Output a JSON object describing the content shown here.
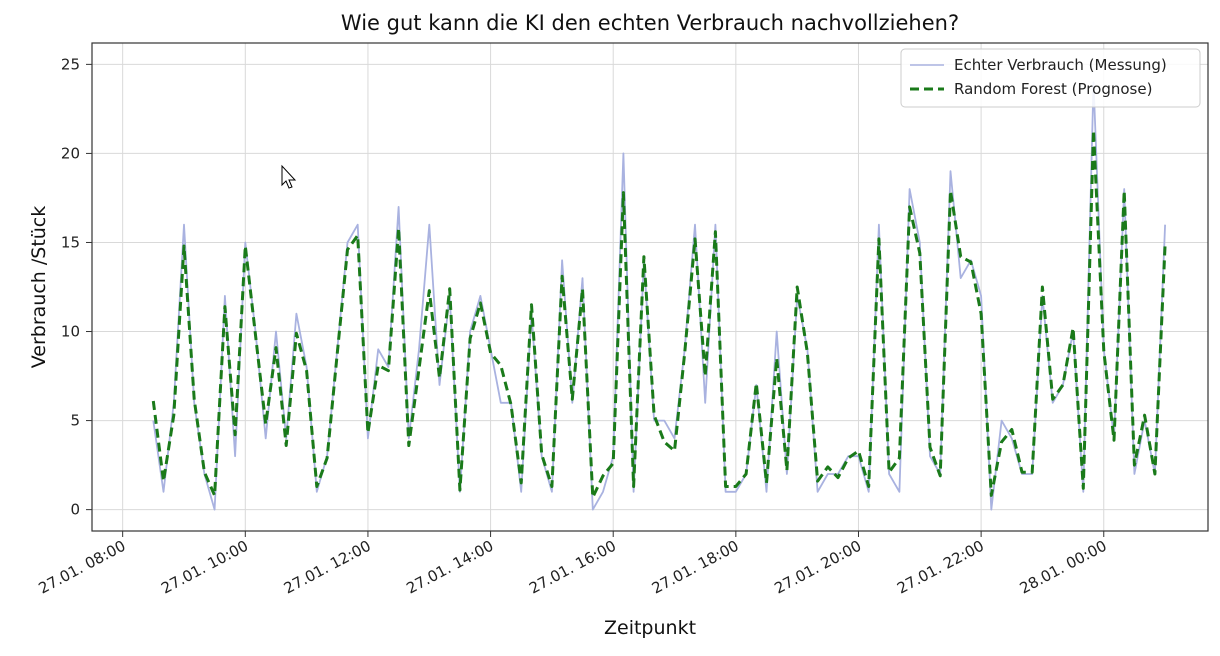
{
  "chart_data": {
    "type": "line",
    "title": "Wie gut kann die KI den echten Verbrauch nachvollziehen?",
    "xlabel": "Zeitpunkt",
    "ylabel": "Verbrauch /Stück",
    "x_axis_kind": "time",
    "x_range_hours": [
      7.5,
      25.7
    ],
    "x_start_hour": 8.5,
    "x_step_minutes": 10,
    "x_ticks": [
      {
        "hour": 8,
        "label": "27.01. 08:00"
      },
      {
        "hour": 10,
        "label": "27.01. 10:00"
      },
      {
        "hour": 12,
        "label": "27.01. 12:00"
      },
      {
        "hour": 14,
        "label": "27.01. 14:00"
      },
      {
        "hour": 16,
        "label": "27.01. 16:00"
      },
      {
        "hour": 18,
        "label": "27.01. 18:00"
      },
      {
        "hour": 20,
        "label": "27.01. 20:00"
      },
      {
        "hour": 22,
        "label": "27.01. 22:00"
      },
      {
        "hour": 24,
        "label": "28.01. 00:00"
      }
    ],
    "ylim": [
      -1.2,
      26.2
    ],
    "y_ticks": [
      0,
      5,
      10,
      15,
      20,
      25
    ],
    "grid": true,
    "legend_position": "top-right",
    "series": [
      {
        "name": "Echter Verbrauch (Messung)",
        "color": "#a9b2e0",
        "style": "solid",
        "values": [
          5,
          1,
          6,
          16,
          6,
          2,
          0,
          12,
          3,
          15,
          10,
          4,
          10,
          4,
          11,
          8,
          1,
          3,
          9,
          15,
          16,
          4,
          9,
          8,
          17,
          4,
          9,
          16,
          7,
          12,
          1,
          10,
          12,
          9,
          6,
          6,
          1,
          11,
          3,
          1,
          14,
          6,
          13,
          0,
          1,
          3,
          20,
          1,
          14,
          5,
          5,
          4,
          9,
          16,
          6,
          16,
          1,
          1,
          2,
          7,
          1,
          10,
          2,
          12,
          9,
          1,
          2,
          2,
          3,
          3,
          1,
          16,
          2,
          1,
          18,
          15,
          3,
          2,
          19,
          13,
          14,
          12,
          0,
          5,
          4,
          2,
          2,
          12,
          6,
          7,
          10,
          1,
          24,
          9,
          4,
          18,
          2,
          5,
          2,
          16
        ]
      },
      {
        "name": "Random Forest (Prognose)",
        "color": "#1a7a1a",
        "style": "dashed",
        "values": [
          6.1,
          1.6,
          5.3,
          14.8,
          6.2,
          2.1,
          0.8,
          11.4,
          4.2,
          14.8,
          9.8,
          4.8,
          9.1,
          3.6,
          9.9,
          7.8,
          1.3,
          2.9,
          8.8,
          14.6,
          15.4,
          4.3,
          8.1,
          7.8,
          15.8,
          3.6,
          7.9,
          12.3,
          7.4,
          12.4,
          1.1,
          9.6,
          11.6,
          8.8,
          8.1,
          5.9,
          1.5,
          11.5,
          3.1,
          1.3,
          13.1,
          6.2,
          12.4,
          0.7,
          1.9,
          2.6,
          17.8,
          1.3,
          14.2,
          5.3,
          3.8,
          3.3,
          8.8,
          15.2,
          7.5,
          15.6,
          1.3,
          1.3,
          2,
          7.1,
          1.5,
          8.5,
          2.2,
          12.5,
          8.8,
          1.6,
          2.4,
          1.8,
          2.9,
          3.3,
          1.3,
          15.2,
          2.1,
          2.9,
          17,
          14.4,
          3.5,
          1.9,
          17.9,
          14.2,
          13.9,
          11,
          0.8,
          3.8,
          4.5,
          2.1,
          2.1,
          12.5,
          6.2,
          7,
          10.2,
          1.2,
          21.3,
          8.9,
          3.9,
          17.9,
          2.5,
          5.3,
          2,
          14.9
        ]
      }
    ]
  }
}
